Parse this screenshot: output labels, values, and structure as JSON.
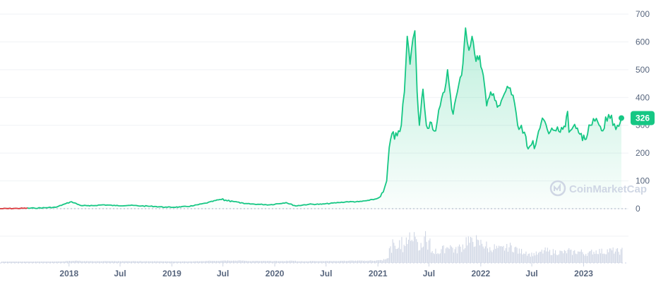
{
  "chart_data": {
    "type": "line",
    "watermark": "CoinMarketCap",
    "colors": {
      "line": "#16c784",
      "fill": "#16c784",
      "badge": "#16c784",
      "volume": "#cfd6e4",
      "grid": "#eff2f5",
      "start_segment": "#ea3943"
    },
    "ylim": [
      0,
      700
    ],
    "y_ticks": [
      "0",
      "100",
      "200",
      "300",
      "400",
      "500",
      "600",
      "700"
    ],
    "y_tick_values": [
      0,
      100,
      200,
      300,
      400,
      500,
      600,
      700
    ],
    "x_ticks": [
      {
        "label": "2018",
        "date": "2018-01-01"
      },
      {
        "label": "Jul",
        "date": "2018-07-01"
      },
      {
        "label": "2019",
        "date": "2019-01-01"
      },
      {
        "label": "Jul",
        "date": "2019-07-01"
      },
      {
        "label": "2020",
        "date": "2020-01-01"
      },
      {
        "label": "Jul",
        "date": "2020-07-01"
      },
      {
        "label": "2021",
        "date": "2021-01-01"
      },
      {
        "label": "Jul",
        "date": "2021-07-01"
      },
      {
        "label": "2022",
        "date": "2022-01-01"
      },
      {
        "label": "Jul",
        "date": "2022-07-01"
      },
      {
        "label": "2023",
        "date": "2023-01-01"
      }
    ],
    "xlim": [
      "2017-05-01",
      "2023-05-20"
    ],
    "current_price": {
      "label": "326",
      "value": 326,
      "date": "2023-05-15"
    },
    "series": [
      {
        "points": [
          [
            "2017-05-01",
            0
          ],
          [
            "2017-07-01",
            1
          ],
          [
            "2017-09-01",
            2
          ],
          [
            "2017-11-15",
            5
          ],
          [
            "2017-12-20",
            18
          ],
          [
            "2018-01-10",
            25
          ],
          [
            "2018-02-10",
            12
          ],
          [
            "2018-03-15",
            10
          ],
          [
            "2018-05-01",
            14
          ],
          [
            "2018-06-15",
            11
          ],
          [
            "2018-08-01",
            12
          ],
          [
            "2018-09-15",
            10
          ],
          [
            "2018-11-01",
            8
          ],
          [
            "2018-12-15",
            5
          ],
          [
            "2019-02-01",
            6
          ],
          [
            "2019-03-15",
            10
          ],
          [
            "2019-05-01",
            20
          ],
          [
            "2019-06-20",
            33
          ],
          [
            "2019-08-01",
            28
          ],
          [
            "2019-09-15",
            18
          ],
          [
            "2019-11-01",
            16
          ],
          [
            "2019-12-15",
            14
          ],
          [
            "2020-02-10",
            22
          ],
          [
            "2020-03-15",
            10
          ],
          [
            "2020-05-01",
            16
          ],
          [
            "2020-06-15",
            16
          ],
          [
            "2020-08-15",
            22
          ],
          [
            "2020-09-15",
            25
          ],
          [
            "2020-10-25",
            25
          ],
          [
            "2020-12-01",
            30
          ],
          [
            "2020-12-25",
            35
          ],
          [
            "2021-01-05",
            40
          ],
          [
            "2021-01-20",
            60
          ],
          [
            "2021-02-01",
            100
          ],
          [
            "2021-02-10",
            220
          ],
          [
            "2021-02-20",
            270
          ],
          [
            "2021-03-01",
            250
          ],
          [
            "2021-03-15",
            280
          ],
          [
            "2021-03-25",
            300
          ],
          [
            "2021-04-05",
            420
          ],
          [
            "2021-04-15",
            620
          ],
          [
            "2021-04-25",
            520
          ],
          [
            "2021-05-05",
            610
          ],
          [
            "2021-05-12",
            640
          ],
          [
            "2021-05-20",
            420
          ],
          [
            "2021-05-28",
            300
          ],
          [
            "2021-06-10",
            430
          ],
          [
            "2021-06-22",
            300
          ],
          [
            "2021-07-10",
            310
          ],
          [
            "2021-07-25",
            280
          ],
          [
            "2021-08-10",
            370
          ],
          [
            "2021-08-25",
            420
          ],
          [
            "2021-09-05",
            500
          ],
          [
            "2021-09-15",
            410
          ],
          [
            "2021-09-25",
            340
          ],
          [
            "2021-10-10",
            420
          ],
          [
            "2021-10-25",
            480
          ],
          [
            "2021-11-08",
            650
          ],
          [
            "2021-11-20",
            570
          ],
          [
            "2021-12-01",
            620
          ],
          [
            "2021-12-15",
            530
          ],
          [
            "2021-12-28",
            550
          ],
          [
            "2022-01-10",
            480
          ],
          [
            "2022-01-22",
            370
          ],
          [
            "2022-02-05",
            420
          ],
          [
            "2022-02-20",
            390
          ],
          [
            "2022-03-05",
            370
          ],
          [
            "2022-03-20",
            400
          ],
          [
            "2022-04-05",
            440
          ],
          [
            "2022-04-20",
            410
          ],
          [
            "2022-05-01",
            380
          ],
          [
            "2022-05-12",
            300
          ],
          [
            "2022-05-25",
            300
          ],
          [
            "2022-06-10",
            260
          ],
          [
            "2022-06-18",
            215
          ],
          [
            "2022-06-30",
            230
          ],
          [
            "2022-07-15",
            230
          ],
          [
            "2022-07-30",
            290
          ],
          [
            "2022-08-12",
            320
          ],
          [
            "2022-08-25",
            285
          ],
          [
            "2022-09-10",
            290
          ],
          [
            "2022-09-25",
            280
          ],
          [
            "2022-10-10",
            275
          ],
          [
            "2022-10-28",
            295
          ],
          [
            "2022-11-05",
            350
          ],
          [
            "2022-11-10",
            275
          ],
          [
            "2022-11-25",
            295
          ],
          [
            "2022-12-10",
            290
          ],
          [
            "2022-12-28",
            245
          ],
          [
            "2023-01-10",
            250
          ],
          [
            "2023-01-25",
            300
          ],
          [
            "2023-02-10",
            315
          ],
          [
            "2023-02-25",
            300
          ],
          [
            "2023-03-10",
            280
          ],
          [
            "2023-03-20",
            330
          ],
          [
            "2023-04-05",
            325
          ],
          [
            "2023-04-20",
            305
          ],
          [
            "2023-05-01",
            300
          ],
          [
            "2023-05-15",
            326
          ]
        ]
      }
    ]
  }
}
